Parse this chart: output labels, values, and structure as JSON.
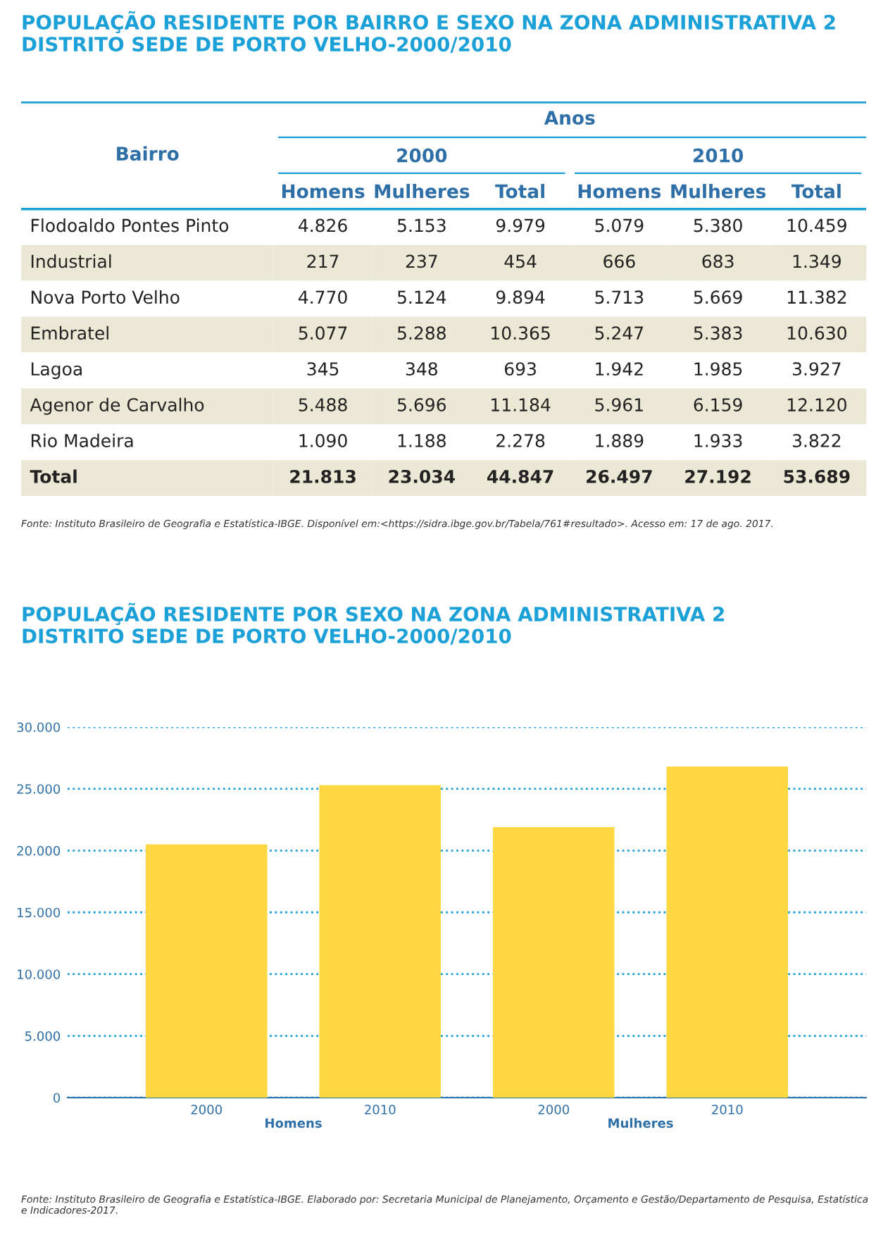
{
  "chart_data": [
    {
      "type": "heatmap",
      "title": "POPULAÇÃO RESIDENTE POR BAIRRO E SEXO NA ZONA ADMINISTRATIVA 2\nDISTRITO SEDE DE PORTO VELHO-2000/2010",
      "categories": [
        "Homens",
        "Mulheres",
        "Total",
        "Homens",
        "Mulheres",
        "Total"
      ],
      "y_categories": [
        "Flodoaldo Pontes Pinto",
        "Industrial",
        "Nova Porto Velho",
        "Embratel",
        "Lagoa",
        "Agenor de Carvalho",
        "Rio Madeira",
        "Total"
      ],
      "cells": [
        [
          4826,
          5153,
          9979,
          5079,
          5380,
          10459
        ],
        [
          217,
          237,
          454,
          666,
          683,
          1349
        ],
        [
          4770,
          5124,
          9894,
          5713,
          5669,
          11382
        ],
        [
          5077,
          5288,
          10365,
          5247,
          5383,
          10630
        ],
        [
          345,
          348,
          693,
          1942,
          1985,
          3927
        ],
        [
          5488,
          5696,
          11184,
          5961,
          6159,
          12120
        ],
        [
          1090,
          1188,
          2278,
          1889,
          1933,
          3822
        ],
        [
          21813,
          23034,
          44847,
          26497,
          27192,
          53689
        ]
      ],
      "cell_labels": [
        [
          "4.826",
          "5.153",
          "9.979",
          "5.079",
          "5.380",
          "10.459"
        ],
        [
          "217",
          "237",
          "454",
          "666",
          "683",
          "1.349"
        ],
        [
          "4.770",
          "5.124",
          "9.894",
          "5.713",
          "5.669",
          "11.382"
        ],
        [
          "5.077",
          "5.288",
          "10.365",
          "5.247",
          "5.383",
          "10.630"
        ],
        [
          "345",
          "348",
          "693",
          "1.942",
          "1.985",
          "3.927"
        ],
        [
          "5.488",
          "5.696",
          "11.184",
          "5.961",
          "6.159",
          "12.120"
        ],
        [
          "1.090",
          "1.188",
          "2.278",
          "1.889",
          "1.933",
          "3.822"
        ],
        [
          "21.813",
          "23.034",
          "44.847",
          "26.497",
          "27.192",
          "53.689"
        ]
      ],
      "annotations": [
        "Bairro",
        "Anos",
        "2000",
        "2010",
        "Fonte: Instituto Brasileiro de Geografia e Estatística-IBGE. Disponível em:<https://sidra.ibge.gov.br/Tabela/761#resultado>. Acesso em: 17 de ago. 2017."
      ]
    },
    {
      "type": "bar",
      "title": "POPULAÇÃO RESIDENTE POR SEXO NA ZONA ADMINISTRATIVA 2\nDISTRITO SEDE DE PORTO VELHO-2000/2010",
      "categories": [
        "2000",
        "2010",
        "2000",
        "2010"
      ],
      "values": [
        20500,
        25300,
        21900,
        26800
      ],
      "color": "#fdd842",
      "ylim": [
        0,
        30000
      ],
      "yticks": [
        {
          "value": 0,
          "label": "0"
        },
        {
          "value": 5000,
          "label": "5.000"
        },
        {
          "value": 10000,
          "label": "10.000"
        },
        {
          "value": 15000,
          "label": "15.000"
        },
        {
          "value": 20000,
          "label": "20.000"
        },
        {
          "value": 25000,
          "label": "25.000"
        },
        {
          "value": 30000,
          "label": "30.000"
        }
      ],
      "grid": "y",
      "annotations": [
        "Homens",
        "Mulheres",
        "Fonte: Instituto Brasileiro de Geografia e Estatística-IBGE. Elaborado por: Secretaria Municipal de Planejamento, Orçamento e Gestão/Departamento de Pesquisa, Estatística e Indicadores-2017."
      ]
    }
  ]
}
